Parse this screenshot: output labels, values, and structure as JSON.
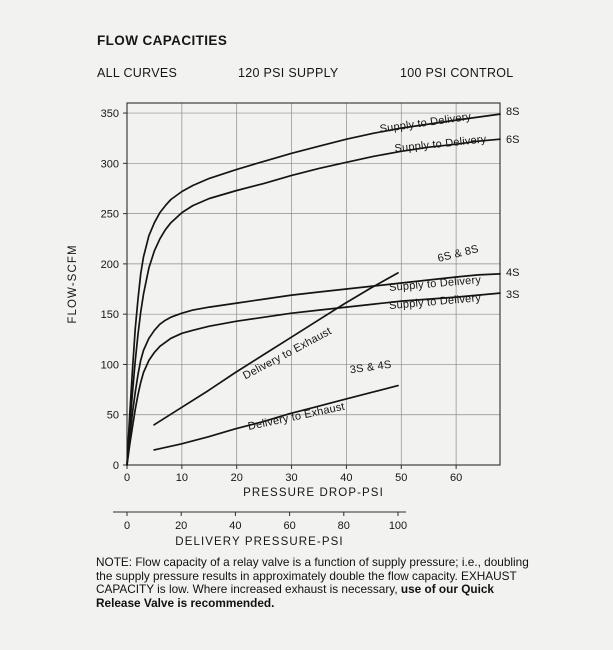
{
  "page": {
    "title": "FLOW CAPACITIES",
    "conditions": {
      "all_curves": "ALL CURVES",
      "supply": "120 PSI SUPPLY",
      "control": "100 PSI CONTROL"
    }
  },
  "chart_data": {
    "type": "line",
    "title": "FLOW CAPACITIES",
    "xlabel": "PRESSURE DROP-PSI",
    "ylabel": "FLOW-SCFM",
    "xlim": [
      0,
      68
    ],
    "ylim": [
      0,
      360
    ],
    "xticks": [
      0,
      10,
      20,
      30,
      40,
      50,
      60
    ],
    "yticks": [
      0,
      50,
      100,
      150,
      200,
      250,
      300,
      350
    ],
    "grid": true,
    "colors": {
      "ink": "#141414",
      "grid": "#8c8c8c"
    },
    "series": [
      {
        "name": "Supply to Delivery (8S)",
        "code": "8S",
        "x_axis": "pressure_drop",
        "right_label": "8S",
        "right_label_y": 352,
        "points": [
          [
            0,
            0
          ],
          [
            0.5,
            50
          ],
          [
            1,
            95
          ],
          [
            1.5,
            135
          ],
          [
            2,
            165
          ],
          [
            2.5,
            190
          ],
          [
            3,
            207
          ],
          [
            4,
            228
          ],
          [
            5,
            241
          ],
          [
            6,
            251
          ],
          [
            7,
            258
          ],
          [
            8,
            264
          ],
          [
            10,
            272
          ],
          [
            12,
            278
          ],
          [
            15,
            285
          ],
          [
            20,
            294
          ],
          [
            25,
            302
          ],
          [
            30,
            310
          ],
          [
            35,
            317
          ],
          [
            40,
            324
          ],
          [
            45,
            330
          ],
          [
            50,
            335
          ],
          [
            55,
            339
          ],
          [
            60,
            343
          ],
          [
            64,
            346
          ],
          [
            68,
            349
          ]
        ]
      },
      {
        "name": "Supply to Delivery (6S)",
        "code": "6S",
        "x_axis": "pressure_drop",
        "right_label": "6S",
        "right_label_y": 324,
        "points": [
          [
            0,
            0
          ],
          [
            0.5,
            38
          ],
          [
            1,
            72
          ],
          [
            1.5,
            103
          ],
          [
            2,
            130
          ],
          [
            2.5,
            152
          ],
          [
            3,
            170
          ],
          [
            4,
            196
          ],
          [
            5,
            213
          ],
          [
            6,
            225
          ],
          [
            7,
            234
          ],
          [
            8,
            241
          ],
          [
            10,
            251
          ],
          [
            12,
            258
          ],
          [
            15,
            265
          ],
          [
            20,
            273
          ],
          [
            25,
            280
          ],
          [
            30,
            288
          ],
          [
            35,
            295
          ],
          [
            40,
            301
          ],
          [
            45,
            307
          ],
          [
            50,
            312
          ],
          [
            55,
            316
          ],
          [
            60,
            319
          ],
          [
            64,
            322
          ],
          [
            68,
            324
          ]
        ]
      },
      {
        "name": "Supply to Delivery (4S)",
        "code": "4S",
        "x_axis": "pressure_drop",
        "right_label": "4S",
        "right_label_y": 192,
        "points": [
          [
            0,
            0
          ],
          [
            0.5,
            28
          ],
          [
            1,
            52
          ],
          [
            1.5,
            72
          ],
          [
            2,
            90
          ],
          [
            2.5,
            104
          ],
          [
            3,
            114
          ],
          [
            4,
            126
          ],
          [
            5,
            134
          ],
          [
            6,
            140
          ],
          [
            7,
            144
          ],
          [
            8,
            147
          ],
          [
            10,
            151
          ],
          [
            12,
            154
          ],
          [
            15,
            157
          ],
          [
            20,
            161
          ],
          [
            25,
            165
          ],
          [
            30,
            169
          ],
          [
            35,
            172
          ],
          [
            40,
            175
          ],
          [
            45,
            178
          ],
          [
            50,
            181
          ],
          [
            55,
            184
          ],
          [
            60,
            187
          ],
          [
            64,
            189
          ],
          [
            68,
            190
          ]
        ]
      },
      {
        "name": "Supply to Delivery (3S)",
        "code": "3S",
        "x_axis": "pressure_drop",
        "right_label": "3S",
        "right_label_y": 170,
        "points": [
          [
            0,
            0
          ],
          [
            0.5,
            20
          ],
          [
            1,
            38
          ],
          [
            1.5,
            55
          ],
          [
            2,
            70
          ],
          [
            2.5,
            82
          ],
          [
            3,
            92
          ],
          [
            4,
            104
          ],
          [
            5,
            112
          ],
          [
            6,
            118
          ],
          [
            7,
            122
          ],
          [
            8,
            126
          ],
          [
            10,
            131
          ],
          [
            12,
            134
          ],
          [
            15,
            138
          ],
          [
            20,
            143
          ],
          [
            25,
            147
          ],
          [
            30,
            151
          ],
          [
            35,
            154
          ],
          [
            40,
            157
          ],
          [
            45,
            160
          ],
          [
            50,
            163
          ],
          [
            55,
            165
          ],
          [
            60,
            167
          ],
          [
            64,
            169
          ],
          [
            68,
            171
          ]
        ]
      },
      {
        "name": "Delivery to Exhaust (6S & 8S)",
        "code": "exhaust-6s-8s",
        "x_axis": "delivery_pressure",
        "points": [
          [
            10,
            40
          ],
          [
            20,
            57
          ],
          [
            30,
            74
          ],
          [
            40,
            92
          ],
          [
            50,
            109
          ],
          [
            60,
            126
          ],
          [
            70,
            143
          ],
          [
            80,
            160
          ],
          [
            90,
            176
          ],
          [
            100,
            191
          ]
        ]
      },
      {
        "name": "Delivery to Exhaust (3S & 4S)",
        "code": "exhaust-3s-4s",
        "x_axis": "delivery_pressure",
        "points": [
          [
            10,
            15
          ],
          [
            20,
            21
          ],
          [
            30,
            28
          ],
          [
            40,
            36
          ],
          [
            50,
            43
          ],
          [
            60,
            51
          ],
          [
            70,
            58
          ],
          [
            80,
            65
          ],
          [
            90,
            72
          ],
          [
            100,
            79
          ]
        ]
      }
    ],
    "annotations": [
      {
        "text": "Supply to Delivery",
        "x": 54.5,
        "y": 337,
        "rot": -8
      },
      {
        "text": "Supply to Delivery",
        "x": 57.2,
        "y": 316,
        "rot": -6
      },
      {
        "text": "6S & 8S",
        "x": 60.5,
        "y": 207,
        "rot": -14
      },
      {
        "text": "Supply to Delivery",
        "x": 56.2,
        "y": 177,
        "rot": -5
      },
      {
        "text": "Supply to Delivery",
        "x": 56.2,
        "y": 159,
        "rot": -5
      },
      {
        "text": "Delivery to Exhaust",
        "x": 29.5,
        "y": 108,
        "rot": -28
      },
      {
        "text": "3S & 4S",
        "x": 44.5,
        "y": 94,
        "rot": -8
      },
      {
        "text": "Delivery to Exhaust",
        "x": 31,
        "y": 45,
        "rot": -12
      }
    ],
    "secondary_axis": {
      "label": "DELIVERY PRESSURE-PSI",
      "xlim": [
        0,
        100
      ],
      "ticks": [
        0,
        20,
        40,
        60,
        80,
        100
      ]
    }
  },
  "note": {
    "text": "NOTE: Flow capacity of a relay valve is a function of supply pressure; i.e., doubling the supply pressure results in approximately double the flow capacity. EXHAUST CAPACITY is low. Where increased exhaust is necessary, ",
    "bold_text": "use of our Quick Release Valve is recommended."
  }
}
